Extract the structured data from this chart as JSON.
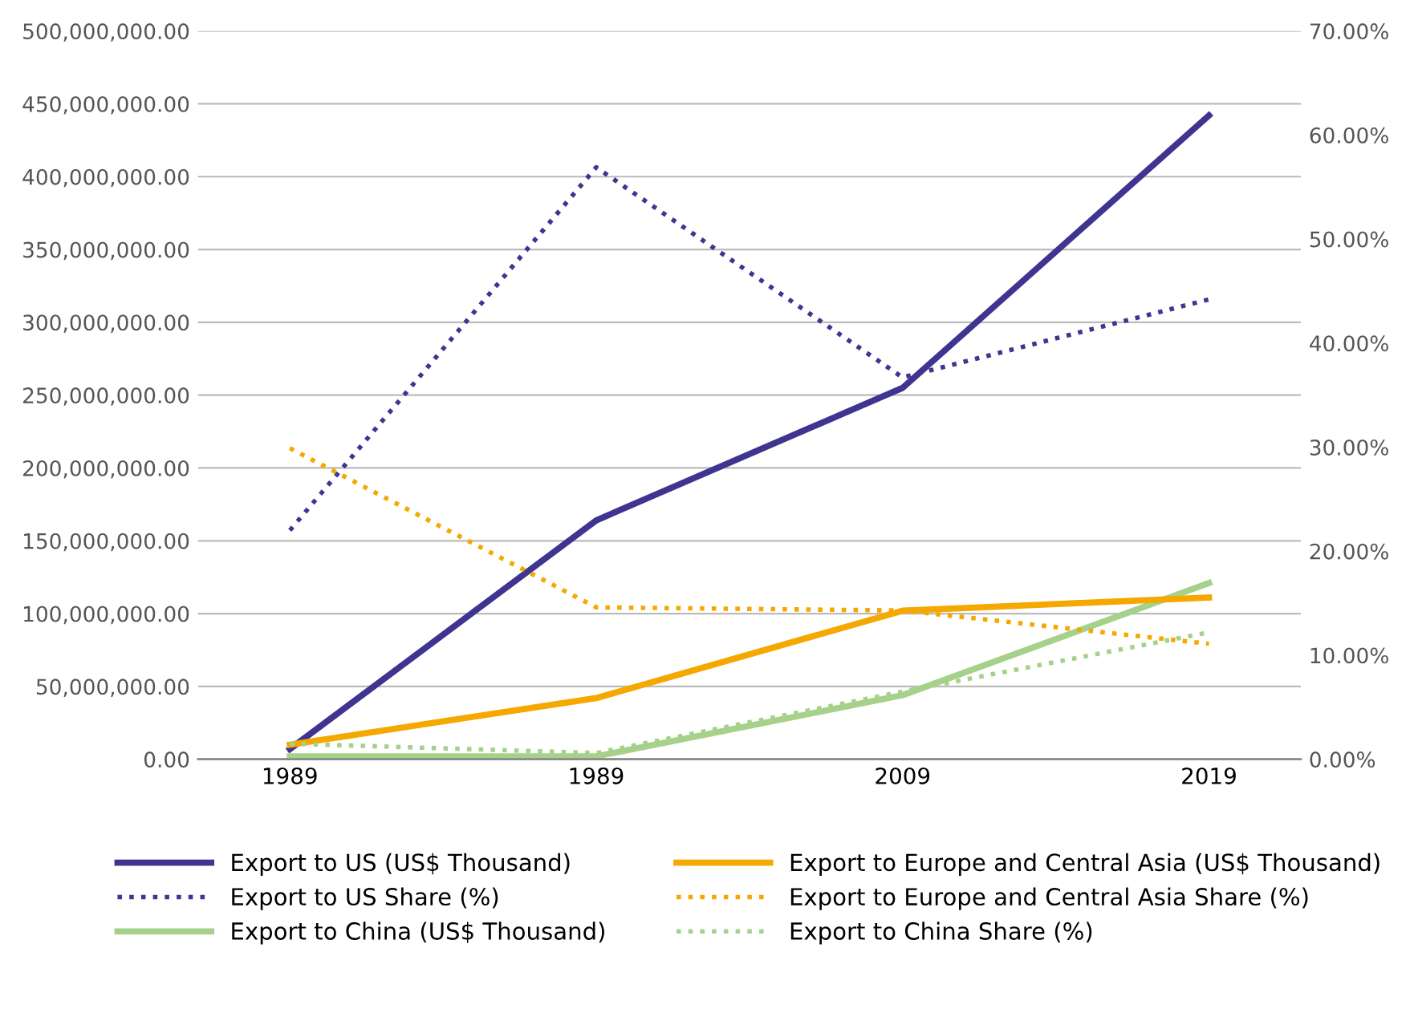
{
  "chart_data": {
    "type": "line",
    "categories": [
      "1989",
      "1989",
      "2009",
      "2019"
    ],
    "series": [
      {
        "name": "Export to US (US$ Thousand)",
        "color": "#3f3590",
        "values": [
          7000000,
          164000000,
          255000000,
          442000000
        ],
        "line_style": "solid"
      },
      {
        "name": "Export to US Share (%)",
        "color": "#3f3590",
        "values": [
          22.0,
          56.9,
          36.7,
          44.2
        ],
        "line_style": "dotted",
        "axis": "y2"
      },
      {
        "name": "Export to China (US$ Thousand)",
        "color": "#a6d18a",
        "values": [
          2000000,
          2000000,
          44000000,
          121000000
        ],
        "line_style": "solid"
      },
      {
        "name": "Export to Europe and Central Asia (US$ Thousand)",
        "color": "#f5a800",
        "values": [
          10000000,
          42000000,
          102000000,
          111000000
        ],
        "line_style": "solid"
      },
      {
        "name": "Export to Europe and Central Asia Share (%)",
        "color": "#f5a800",
        "values": [
          29.9,
          14.6,
          14.3,
          11.1
        ],
        "line_style": "dotted",
        "axis": "y2"
      },
      {
        "name": "Export to China Share (%)",
        "color": "#a6d18a",
        "values": [
          1.5,
          0.6,
          6.5,
          12.2
        ],
        "line_style": "dotted",
        "axis": "y2"
      }
    ],
    "ylim": [
      0,
      500000000
    ],
    "yticks": [
      {
        "value": 0,
        "label": "0.00"
      },
      {
        "value": 50000000,
        "label": "50,000,000.00"
      },
      {
        "value": 100000000,
        "label": "100,000,000.00"
      },
      {
        "value": 150000000,
        "label": "150,000,000.00"
      },
      {
        "value": 200000000,
        "label": "200,000,000.00"
      },
      {
        "value": 250000000,
        "label": "250,000,000.00"
      },
      {
        "value": 300000000,
        "label": "300,000,000.00"
      },
      {
        "value": 350000000,
        "label": "350,000,000.00"
      },
      {
        "value": 400000000,
        "label": "400,000,000.00"
      },
      {
        "value": 450000000,
        "label": "450,000,000.00"
      },
      {
        "value": 500000000,
        "label": "500,000,000.00"
      }
    ],
    "y2lim": [
      0,
      70
    ],
    "y2ticks": [
      {
        "value": 0,
        "label": "0.00%"
      },
      {
        "value": 10,
        "label": "10.00%"
      },
      {
        "value": 20,
        "label": "20.00%"
      },
      {
        "value": 30,
        "label": "30.00%"
      },
      {
        "value": 40,
        "label": "40.00%"
      },
      {
        "value": 50,
        "label": "50.00%"
      },
      {
        "value": 60,
        "label": "60.00%"
      },
      {
        "value": 70,
        "label": "70.00%"
      }
    ],
    "grid": "y",
    "legend": "bottom",
    "marker": "none"
  }
}
